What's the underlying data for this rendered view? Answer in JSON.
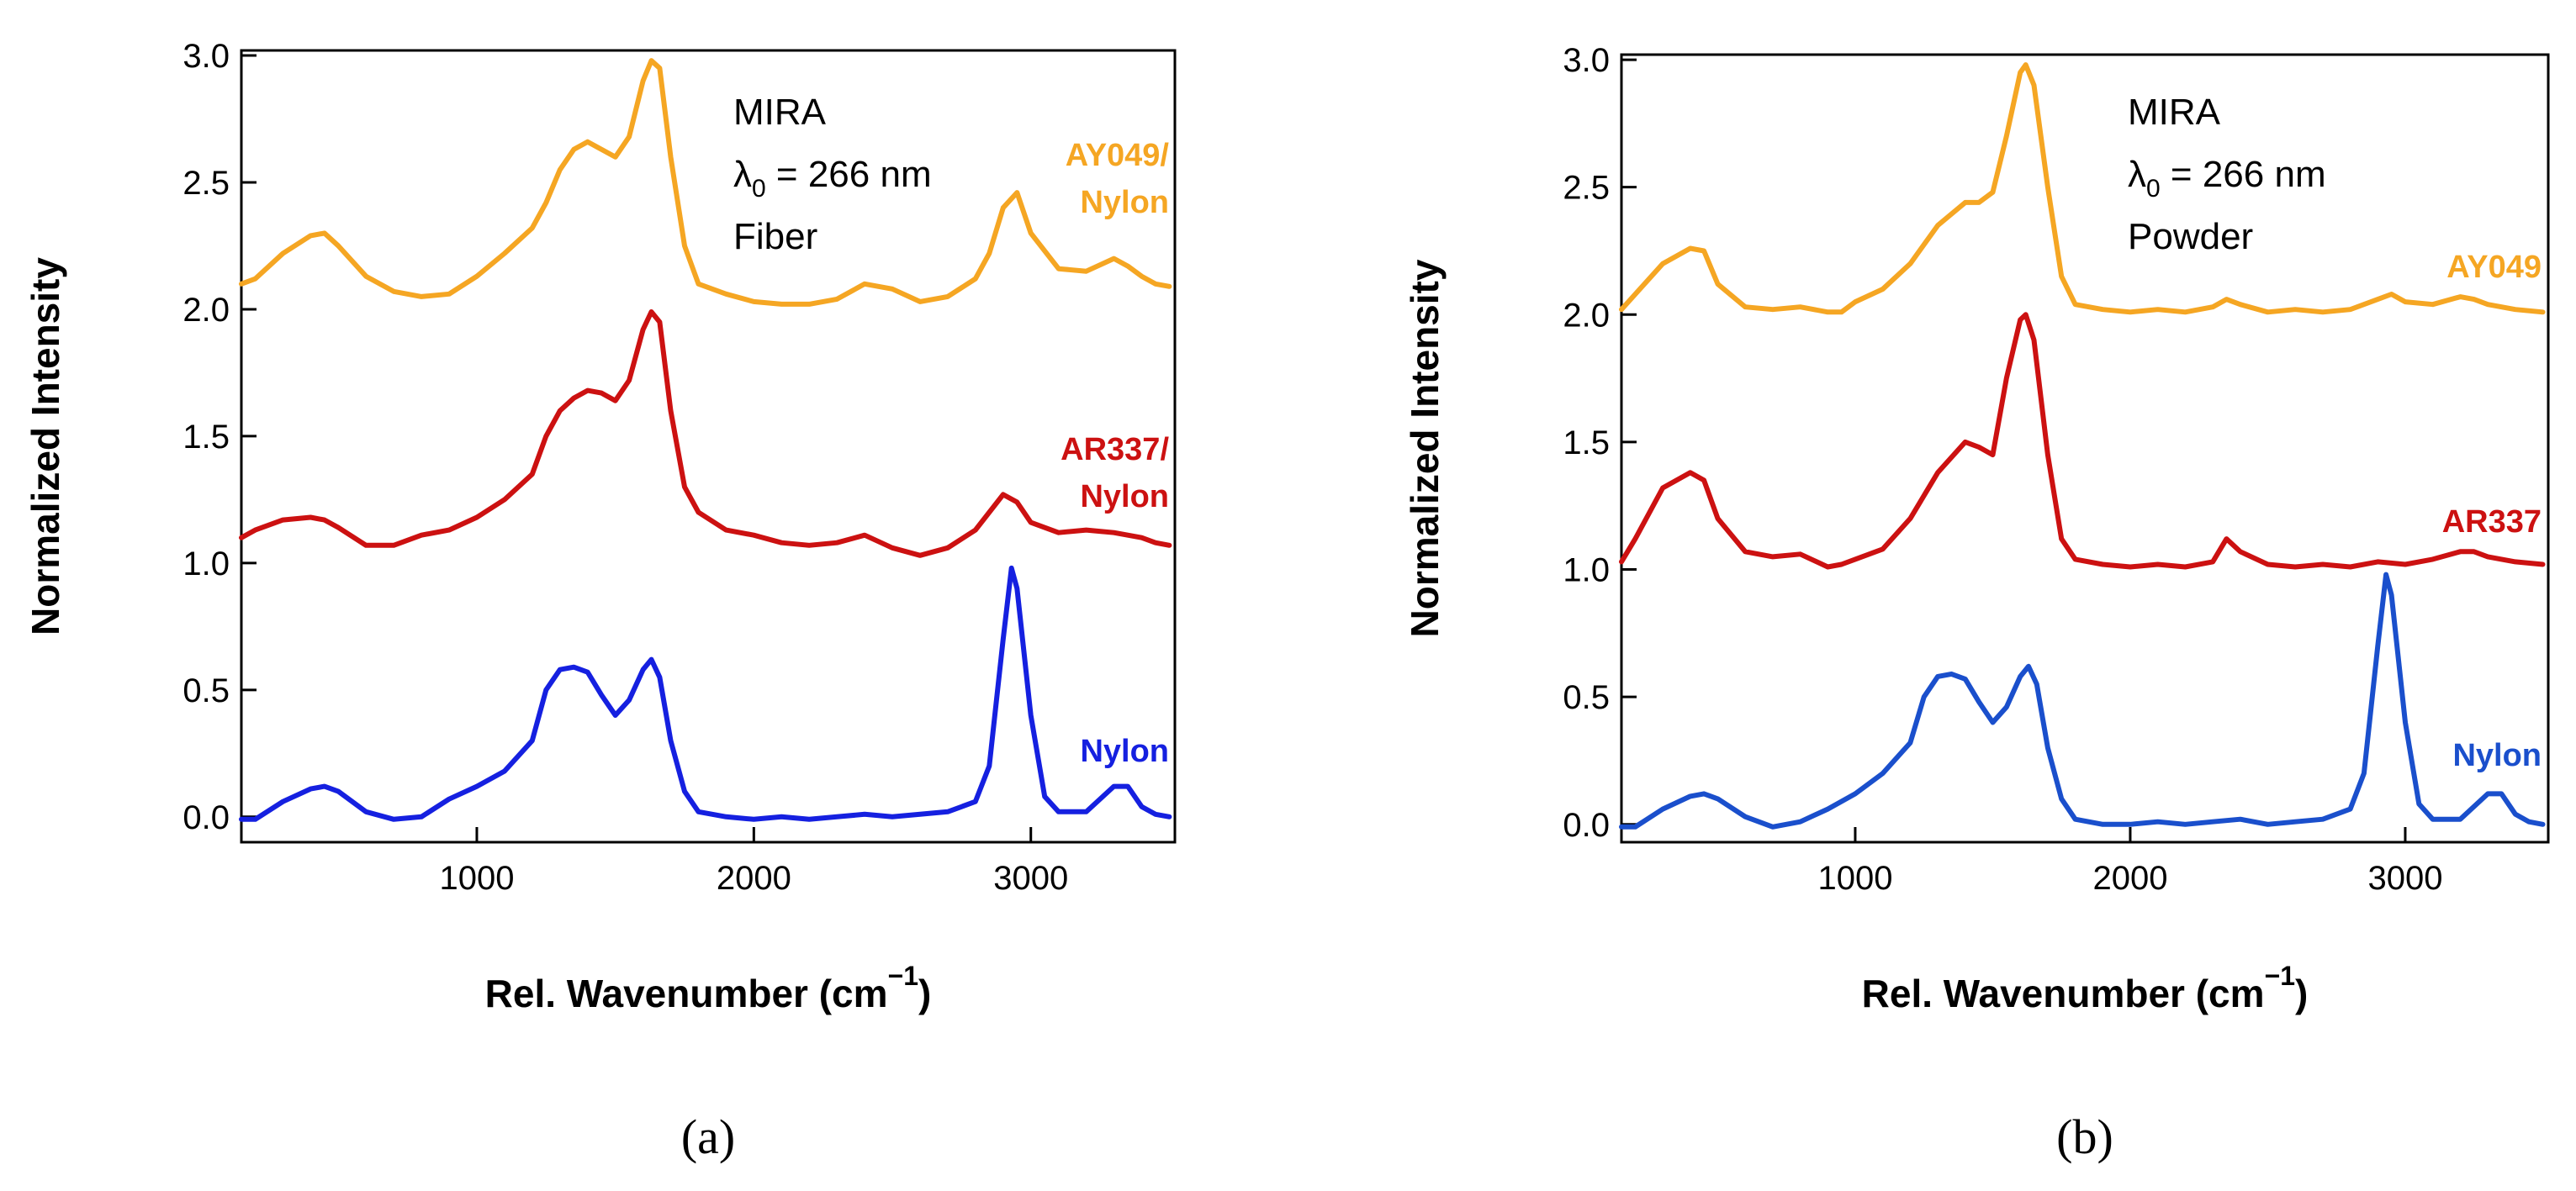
{
  "chart_data": [
    {
      "type": "line",
      "panel_caption": "(a)",
      "xlabel": "Rel. Wavenumber (cm",
      "xlabel_sup": "−1",
      "xlabel_close": ")",
      "ylabel": "Normalized Intensity",
      "xlim": [
        150,
        3520
      ],
      "ylim": [
        -0.1,
        3.02
      ],
      "xticks": [
        1000,
        2000,
        3000
      ],
      "xtick_labels": [
        "1000",
        "2000",
        "3000"
      ],
      "yticks": [
        0.0,
        0.5,
        1.0,
        1.5,
        2.0,
        2.5,
        3.0
      ],
      "ytick_labels": [
        "0.0",
        "0.5",
        "1.0",
        "1.5",
        "2.0",
        "2.5",
        "3.0"
      ],
      "annotation": [
        "MIRA",
        "λ",
        "0",
        " = 266 nm",
        "Fiber"
      ],
      "series": [
        {
          "name": "AY049/Nylon",
          "label_lines": [
            "AY049/",
            "Nylon"
          ],
          "color": "#F5A623",
          "x": [
            150,
            200,
            300,
            400,
            450,
            500,
            600,
            700,
            800,
            900,
            1000,
            1100,
            1200,
            1250,
            1300,
            1350,
            1400,
            1450,
            1500,
            1550,
            1600,
            1630,
            1660,
            1700,
            1750,
            1800,
            1900,
            2000,
            2100,
            2200,
            2300,
            2400,
            2500,
            2600,
            2700,
            2800,
            2850,
            2900,
            2950,
            3000,
            3100,
            3200,
            3300,
            3350,
            3400,
            3450,
            3500
          ],
          "y": [
            2.1,
            2.12,
            2.22,
            2.29,
            2.3,
            2.25,
            2.13,
            2.07,
            2.05,
            2.06,
            2.13,
            2.22,
            2.32,
            2.42,
            2.55,
            2.63,
            2.66,
            2.63,
            2.6,
            2.68,
            2.9,
            2.98,
            2.95,
            2.6,
            2.25,
            2.1,
            2.06,
            2.03,
            2.02,
            2.02,
            2.04,
            2.1,
            2.08,
            2.03,
            2.05,
            2.12,
            2.22,
            2.4,
            2.46,
            2.3,
            2.16,
            2.15,
            2.2,
            2.17,
            2.13,
            2.1,
            2.09
          ]
        },
        {
          "name": "AR337/Nylon",
          "label_lines": [
            "AR337/",
            "Nylon"
          ],
          "color": "#CC1111",
          "x": [
            150,
            200,
            300,
            400,
            450,
            500,
            600,
            700,
            800,
            900,
            1000,
            1100,
            1200,
            1250,
            1300,
            1350,
            1400,
            1450,
            1500,
            1550,
            1600,
            1630,
            1660,
            1700,
            1750,
            1800,
            1900,
            2000,
            2100,
            2200,
            2300,
            2400,
            2500,
            2600,
            2700,
            2800,
            2850,
            2900,
            2950,
            3000,
            3100,
            3200,
            3300,
            3400,
            3450,
            3500
          ],
          "y": [
            1.1,
            1.13,
            1.17,
            1.18,
            1.17,
            1.14,
            1.07,
            1.07,
            1.11,
            1.13,
            1.18,
            1.25,
            1.35,
            1.5,
            1.6,
            1.65,
            1.68,
            1.67,
            1.64,
            1.72,
            1.92,
            1.99,
            1.95,
            1.6,
            1.3,
            1.2,
            1.13,
            1.11,
            1.08,
            1.07,
            1.08,
            1.11,
            1.06,
            1.03,
            1.06,
            1.13,
            1.2,
            1.27,
            1.24,
            1.16,
            1.12,
            1.13,
            1.12,
            1.1,
            1.08,
            1.07
          ]
        },
        {
          "name": "Nylon",
          "label_lines": [
            "Nylon"
          ],
          "color": "#1520E0",
          "x": [
            150,
            200,
            300,
            400,
            450,
            500,
            600,
            700,
            800,
            900,
            1000,
            1100,
            1200,
            1250,
            1300,
            1350,
            1400,
            1450,
            1500,
            1550,
            1600,
            1630,
            1660,
            1700,
            1750,
            1800,
            1900,
            2000,
            2100,
            2200,
            2300,
            2400,
            2500,
            2600,
            2700,
            2800,
            2850,
            2900,
            2930,
            2950,
            3000,
            3050,
            3100,
            3200,
            3300,
            3350,
            3400,
            3450,
            3500
          ],
          "y": [
            -0.01,
            -0.01,
            0.06,
            0.11,
            0.12,
            0.1,
            0.02,
            -0.01,
            0.0,
            0.07,
            0.12,
            0.18,
            0.3,
            0.5,
            0.58,
            0.59,
            0.57,
            0.48,
            0.4,
            0.46,
            0.58,
            0.62,
            0.55,
            0.3,
            0.1,
            0.02,
            0.0,
            -0.01,
            0.0,
            -0.01,
            0.0,
            0.01,
            0.0,
            0.01,
            0.02,
            0.06,
            0.2,
            0.7,
            0.98,
            0.9,
            0.4,
            0.08,
            0.02,
            0.02,
            0.12,
            0.12,
            0.04,
            0.01,
            0.0
          ]
        }
      ]
    },
    {
      "type": "line",
      "panel_caption": "(b)",
      "xlabel": "Rel. Wavenumber (cm",
      "xlabel_sup": "−1",
      "xlabel_close": ")",
      "ylabel": "Normalized Intensity",
      "xlim": [
        150,
        3520
      ],
      "ylim": [
        -0.07,
        3.02
      ],
      "xticks": [
        1000,
        2000,
        3000
      ],
      "xtick_labels": [
        "1000",
        "2000",
        "3000"
      ],
      "yticks": [
        0.0,
        0.5,
        1.0,
        1.5,
        2.0,
        2.5,
        3.0
      ],
      "ytick_labels": [
        "0.0",
        "0.5",
        "1.0",
        "1.5",
        "2.0",
        "2.5",
        "3.0"
      ],
      "annotation": [
        "MIRA",
        "λ",
        "0",
        " = 266 nm",
        "Powder"
      ],
      "series": [
        {
          "name": "AY049",
          "label_lines": [
            "AY049"
          ],
          "color": "#F5A623",
          "x": [
            150,
            200,
            300,
            400,
            450,
            500,
            600,
            700,
            800,
            900,
            950,
            1000,
            1100,
            1200,
            1300,
            1400,
            1450,
            1500,
            1550,
            1600,
            1620,
            1650,
            1700,
            1750,
            1800,
            1900,
            2000,
            2100,
            2200,
            2300,
            2350,
            2400,
            2500,
            2600,
            2700,
            2800,
            2900,
            2950,
            3000,
            3100,
            3200,
            3250,
            3300,
            3400,
            3500
          ],
          "y": [
            2.02,
            2.08,
            2.2,
            2.26,
            2.25,
            2.12,
            2.03,
            2.02,
            2.03,
            2.01,
            2.01,
            2.05,
            2.1,
            2.2,
            2.35,
            2.44,
            2.44,
            2.48,
            2.7,
            2.95,
            2.98,
            2.9,
            2.5,
            2.15,
            2.04,
            2.02,
            2.01,
            2.02,
            2.01,
            2.03,
            2.06,
            2.04,
            2.01,
            2.02,
            2.01,
            2.02,
            2.06,
            2.08,
            2.05,
            2.04,
            2.07,
            2.06,
            2.04,
            2.02,
            2.01
          ]
        },
        {
          "name": "AR337",
          "label_lines": [
            "AR337"
          ],
          "color": "#CC1111",
          "x": [
            150,
            200,
            300,
            400,
            450,
            500,
            600,
            700,
            800,
            900,
            950,
            1000,
            1100,
            1200,
            1300,
            1400,
            1450,
            1500,
            1550,
            1600,
            1620,
            1650,
            1700,
            1750,
            1800,
            1900,
            2000,
            2100,
            2200,
            2300,
            2350,
            2400,
            2500,
            2600,
            2700,
            2800,
            2900,
            3000,
            3100,
            3200,
            3250,
            3300,
            3400,
            3500
          ],
          "y": [
            1.03,
            1.12,
            1.32,
            1.38,
            1.35,
            1.2,
            1.07,
            1.05,
            1.06,
            1.01,
            1.02,
            1.04,
            1.08,
            1.2,
            1.38,
            1.5,
            1.48,
            1.45,
            1.75,
            1.98,
            2.0,
            1.9,
            1.45,
            1.12,
            1.04,
            1.02,
            1.01,
            1.02,
            1.01,
            1.03,
            1.12,
            1.07,
            1.02,
            1.01,
            1.02,
            1.01,
            1.03,
            1.02,
            1.04,
            1.07,
            1.07,
            1.05,
            1.03,
            1.02
          ]
        },
        {
          "name": "Nylon",
          "label_lines": [
            "Nylon"
          ],
          "color": "#1A4FCC",
          "x": [
            150,
            200,
            300,
            400,
            450,
            500,
            600,
            700,
            800,
            900,
            1000,
            1100,
            1200,
            1250,
            1300,
            1350,
            1400,
            1450,
            1500,
            1550,
            1600,
            1630,
            1660,
            1700,
            1750,
            1800,
            1900,
            2000,
            2100,
            2200,
            2300,
            2400,
            2500,
            2600,
            2700,
            2800,
            2850,
            2900,
            2930,
            2950,
            3000,
            3050,
            3100,
            3200,
            3300,
            3350,
            3400,
            3450,
            3500
          ],
          "y": [
            -0.01,
            -0.01,
            0.06,
            0.11,
            0.12,
            0.1,
            0.03,
            -0.01,
            0.01,
            0.06,
            0.12,
            0.2,
            0.32,
            0.5,
            0.58,
            0.59,
            0.57,
            0.48,
            0.4,
            0.46,
            0.58,
            0.62,
            0.55,
            0.3,
            0.1,
            0.02,
            0.0,
            0.0,
            0.01,
            0.0,
            0.01,
            0.02,
            0.0,
            0.01,
            0.02,
            0.06,
            0.2,
            0.7,
            0.98,
            0.9,
            0.4,
            0.08,
            0.02,
            0.02,
            0.12,
            0.12,
            0.04,
            0.01,
            0.0
          ]
        }
      ]
    }
  ]
}
